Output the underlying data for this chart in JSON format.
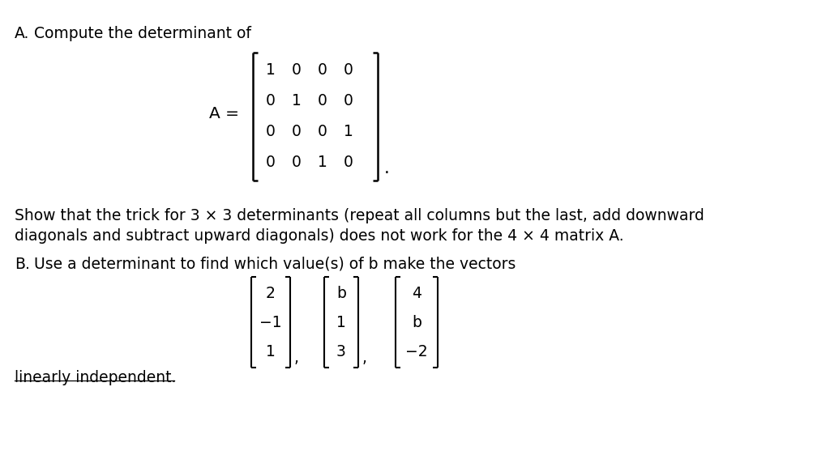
{
  "background_color": "#ffffff",
  "text_color": "#000000",
  "fig_width": 10.24,
  "fig_height": 5.62,
  "part_A_label": "A.",
  "part_A_intro": "Compute the determinant of",
  "matrix_label": "A =",
  "matrix_rows": [
    [
      "1",
      "0",
      "0",
      "0"
    ],
    [
      "0",
      "1",
      "0",
      "0"
    ],
    [
      "0",
      "0",
      "0",
      "1"
    ],
    [
      "0",
      "0",
      "1",
      "0"
    ]
  ],
  "part_A_body1": "Show that the trick for 3 × 3 determinants (repeat all columns but the last, add downward",
  "part_A_body2": "diagonals and subtract upward diagonals) does not work for the 4 × 4 matrix A.",
  "part_B_label": "B.",
  "part_B_intro": "Use a determinant to find which value(s) of b make the vectors",
  "vec1": [
    "2",
    "−1",
    "1"
  ],
  "vec2": [
    "b",
    "1",
    "3"
  ],
  "vec3": [
    "4",
    "b",
    "−2"
  ],
  "part_B_footer": "linearly independent.",
  "font_size_main": 13.5,
  "font_size_matrix": 13.5,
  "font_family": "DejaVu Sans"
}
